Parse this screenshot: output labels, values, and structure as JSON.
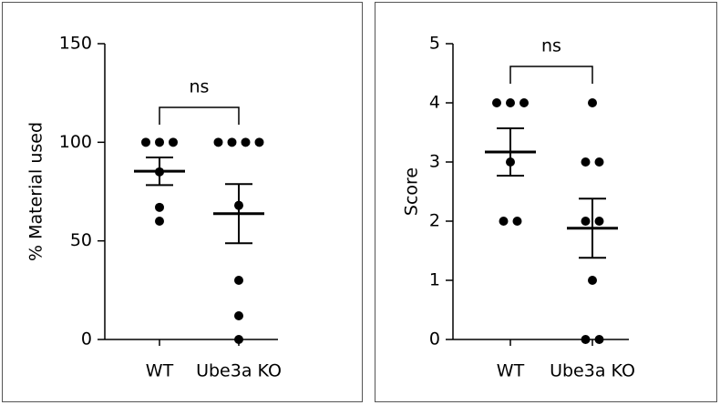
{
  "chart_data": [
    {
      "type": "dot",
      "y_label": "% Material used",
      "annotation": "ns",
      "categories": [
        "WT",
        "Ube3a KO"
      ],
      "values": [
        [
          100,
          100,
          100,
          85,
          67,
          60
        ],
        [
          100,
          100,
          100,
          100,
          68,
          30,
          12,
          0
        ]
      ],
      "means": [
        85.3,
        63.8
      ],
      "sems": [
        7,
        15
      ],
      "ylim": [
        0,
        150
      ],
      "yticks": [
        0,
        50,
        100,
        150
      ],
      "color": "#000000"
    },
    {
      "type": "dot",
      "y_label": "Score",
      "annotation": "ns",
      "categories": [
        "WT",
        "Ube3a KO"
      ],
      "values": [
        [
          4,
          4,
          4,
          3,
          2,
          2
        ],
        [
          4,
          3,
          3,
          2,
          2,
          1,
          0,
          0
        ]
      ],
      "means": [
        3.17,
        1.88
      ],
      "sems": [
        0.4,
        0.5
      ],
      "ylim": [
        0,
        5
      ],
      "yticks": [
        0,
        1,
        2,
        3,
        4,
        5
      ],
      "color": "#000000"
    }
  ]
}
